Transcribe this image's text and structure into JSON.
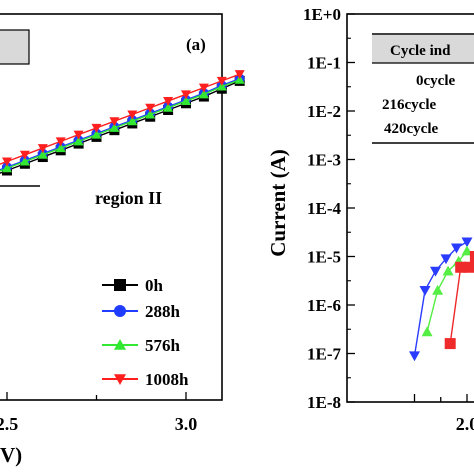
{
  "chart_data": [
    {
      "type": "line",
      "panel_label": "(a)",
      "xlabel": "V)",
      "ylabel": "",
      "x_ticks": [
        "2.5",
        "3.0"
      ],
      "x_range": [
        1.95,
        3.16
      ],
      "grid": false,
      "annotation": "region II",
      "legend_position": "bottom-right",
      "series": [
        {
          "name": "0h",
          "color": "#000000",
          "marker": "square",
          "x": [
            2.0,
            2.05,
            2.1,
            2.15,
            2.2,
            2.25,
            2.3,
            2.35,
            2.4,
            2.45,
            2.5,
            2.55,
            2.6,
            2.65,
            2.7,
            2.75,
            2.8,
            2.85,
            2.9,
            2.95,
            3.0,
            3.05,
            3.1,
            3.15
          ],
          "y": [
            0.0,
            0.02,
            0.05,
            0.09,
            0.13,
            0.18,
            0.23,
            0.28,
            0.34,
            0.4,
            0.46,
            0.52,
            0.58,
            0.64,
            0.7,
            0.76,
            0.82,
            0.88,
            0.94,
            1.0,
            1.06,
            1.12,
            1.19,
            1.26
          ]
        },
        {
          "name": "288h",
          "color": "#1f3cff",
          "marker": "circle",
          "x": [
            2.0,
            2.05,
            2.1,
            2.15,
            2.2,
            2.25,
            2.3,
            2.35,
            2.4,
            2.45,
            2.5,
            2.55,
            2.6,
            2.65,
            2.7,
            2.75,
            2.8,
            2.85,
            2.9,
            2.95,
            3.0,
            3.05,
            3.1,
            3.15
          ],
          "y": [
            0.03,
            0.06,
            0.09,
            0.12,
            0.16,
            0.21,
            0.26,
            0.31,
            0.37,
            0.43,
            0.49,
            0.55,
            0.61,
            0.67,
            0.73,
            0.79,
            0.85,
            0.91,
            0.97,
            1.03,
            1.09,
            1.15,
            1.22,
            1.28
          ]
        },
        {
          "name": "576h",
          "color": "#33e833",
          "marker": "triangle-up",
          "x": [
            2.0,
            2.05,
            2.1,
            2.15,
            2.2,
            2.25,
            2.3,
            2.35,
            2.4,
            2.45,
            2.5,
            2.55,
            2.6,
            2.65,
            2.7,
            2.75,
            2.8,
            2.85,
            2.9,
            2.95,
            3.0,
            3.05,
            3.1,
            3.15
          ],
          "y": [
            0.02,
            0.05,
            0.08,
            0.11,
            0.15,
            0.2,
            0.25,
            0.3,
            0.36,
            0.42,
            0.48,
            0.54,
            0.6,
            0.66,
            0.72,
            0.78,
            0.84,
            0.9,
            0.96,
            1.02,
            1.08,
            1.14,
            1.21,
            1.27
          ]
        },
        {
          "name": "1008h",
          "color": "#ff1f1f",
          "marker": "triangle-down",
          "x": [
            2.0,
            2.05,
            2.1,
            2.15,
            2.2,
            2.25,
            2.3,
            2.35,
            2.4,
            2.45,
            2.5,
            2.55,
            2.6,
            2.65,
            2.7,
            2.75,
            2.8,
            2.85,
            2.9,
            2.95,
            3.0,
            3.05,
            3.1,
            3.15
          ],
          "y": [
            0.06,
            0.09,
            0.13,
            0.17,
            0.21,
            0.26,
            0.31,
            0.36,
            0.42,
            0.48,
            0.54,
            0.6,
            0.66,
            0.72,
            0.78,
            0.84,
            0.9,
            0.96,
            1.02,
            1.08,
            1.14,
            1.2,
            1.26,
            1.32
          ]
        }
      ]
    },
    {
      "type": "line",
      "ylabel": "Current (A)",
      "xlabel": "",
      "y_scale": "log",
      "y_ticks": [
        "1E+0",
        "1E-1",
        "1E-2",
        "1E-3",
        "1E-4",
        "1E-5",
        "1E-6",
        "1E-7",
        "1E-8"
      ],
      "y_range": [
        1e-08,
        1
      ],
      "x_ticks": [
        "2.0"
      ],
      "x_range": [
        1.46,
        2.2
      ],
      "grid": false,
      "table_header": "Cycle ind",
      "table_rows": [
        "0cycle",
        "216cycle",
        "420cycle"
      ],
      "series": [
        {
          "name": "0cycle",
          "color": "#2a3cff",
          "marker": "triangle-down",
          "x": [
            1.5,
            1.6,
            1.7,
            1.8,
            1.9,
            2.0
          ],
          "y": [
            9e-08,
            2e-06,
            5e-06,
            9e-06,
            1.5e-05,
            2e-05
          ]
        },
        {
          "name": "216cycle",
          "color": "#55ee44",
          "marker": "triangle-up",
          "x": [
            1.62,
            1.72,
            1.82,
            1.92,
            2.0
          ],
          "y": [
            2.8e-07,
            2e-06,
            5e-06,
            8e-06,
            1.3e-05
          ]
        },
        {
          "name": "420cycle",
          "color": "#ee2a2a",
          "marker": "square",
          "x": [
            1.84,
            1.94,
            2.02,
            2.08
          ],
          "y": [
            1.6e-07,
            6e-06,
            6e-06,
            1e-05
          ]
        }
      ]
    }
  ]
}
